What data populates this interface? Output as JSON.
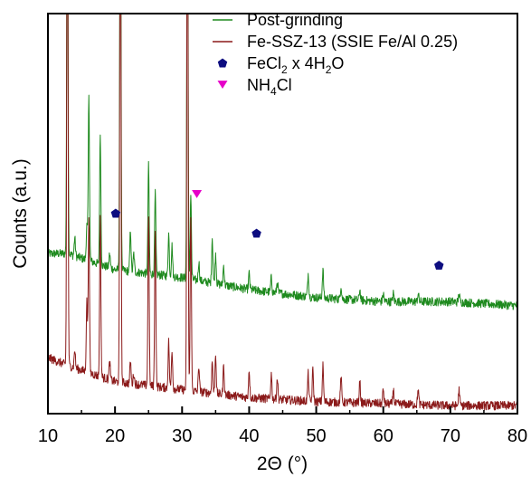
{
  "chart_data": {
    "type": "line",
    "title": "",
    "xlabel": "2Θ (°)",
    "ylabel": "Counts (a.u.)",
    "xlim": [
      10,
      80
    ],
    "x_ticks": [
      10,
      20,
      30,
      40,
      50,
      60,
      70,
      80
    ],
    "x_tick_labels": [
      "10",
      "20",
      "30",
      "40",
      "50",
      "60",
      "70",
      "80"
    ],
    "y_ticks": "none",
    "grid": false,
    "legend_position": "top-right",
    "colors": {
      "post_grinding": "#1e8a1e",
      "fe_ssz13": "#8b1a1a",
      "fecl2_marker": "#0d0d80",
      "nh4cl_marker": "#e600c8"
    },
    "series": [
      {
        "name": "Post-grinding",
        "key": "post_grinding",
        "baseline": [
          [
            10,
            0.4
          ],
          [
            13,
            0.4
          ],
          [
            20,
            0.36
          ],
          [
            30,
            0.34
          ],
          [
            40,
            0.31
          ],
          [
            50,
            0.29
          ],
          [
            60,
            0.28
          ],
          [
            70,
            0.28
          ],
          [
            80,
            0.27
          ]
        ],
        "peaks": [
          [
            12.9,
            1.55
          ],
          [
            14.0,
            0.44
          ],
          [
            15.8,
            0.47
          ],
          [
            16.1,
            0.8
          ],
          [
            17.8,
            0.7
          ],
          [
            19.2,
            0.4
          ],
          [
            20.8,
            1.55
          ],
          [
            22.3,
            0.46
          ],
          [
            22.8,
            0.4
          ],
          [
            25.0,
            0.62
          ],
          [
            26.0,
            0.55
          ],
          [
            28.0,
            0.45
          ],
          [
            28.5,
            0.42
          ],
          [
            30.8,
            1.55
          ],
          [
            31.3,
            0.55
          ],
          [
            32.5,
            0.38
          ],
          [
            34.5,
            0.44
          ],
          [
            35.0,
            0.4
          ],
          [
            36.2,
            0.37
          ],
          [
            40.0,
            0.35
          ],
          [
            43.3,
            0.34
          ],
          [
            44.2,
            0.33
          ],
          [
            48.8,
            0.35
          ],
          [
            51.0,
            0.36
          ],
          [
            53.7,
            0.32
          ],
          [
            56.5,
            0.31
          ],
          [
            60.0,
            0.3
          ],
          [
            61.5,
            0.3
          ],
          [
            65.2,
            0.3
          ],
          [
            71.3,
            0.3
          ]
        ]
      },
      {
        "name": "Fe-SSZ-13 (SSIE Fe/Al 0.25)",
        "key": "fe_ssz13",
        "baseline": [
          [
            10,
            0.14
          ],
          [
            13,
            0.12
          ],
          [
            20,
            0.08
          ],
          [
            30,
            0.06
          ],
          [
            40,
            0.04
          ],
          [
            50,
            0.03
          ],
          [
            60,
            0.025
          ],
          [
            70,
            0.02
          ],
          [
            80,
            0.02
          ]
        ],
        "peaks": [
          [
            12.9,
            1.55
          ],
          [
            14.0,
            0.16
          ],
          [
            15.8,
            0.28
          ],
          [
            16.1,
            0.5
          ],
          [
            17.8,
            0.49
          ],
          [
            19.2,
            0.13
          ],
          [
            20.8,
            1.55
          ],
          [
            22.3,
            0.13
          ],
          [
            22.8,
            0.1
          ],
          [
            25.0,
            0.5
          ],
          [
            26.0,
            0.46
          ],
          [
            28.0,
            0.18
          ],
          [
            28.5,
            0.16
          ],
          [
            30.8,
            1.55
          ],
          [
            31.3,
            0.5
          ],
          [
            32.5,
            0.12
          ],
          [
            34.5,
            0.13
          ],
          [
            35.0,
            0.15
          ],
          [
            36.2,
            0.12
          ],
          [
            40.0,
            0.11
          ],
          [
            43.3,
            0.1
          ],
          [
            44.2,
            0.09
          ],
          [
            48.8,
            0.1
          ],
          [
            49.5,
            0.11
          ],
          [
            51.0,
            0.12
          ],
          [
            53.7,
            0.09
          ],
          [
            56.5,
            0.08
          ],
          [
            60.0,
            0.06
          ],
          [
            61.5,
            0.06
          ],
          [
            65.2,
            0.06
          ],
          [
            71.3,
            0.06
          ]
        ]
      }
    ],
    "markers": [
      {
        "name": "FeCl2 x 4H2O",
        "key": "fecl2_marker",
        "shape": "pentagon",
        "points": [
          [
            20.1,
            0.5
          ],
          [
            41.1,
            0.45
          ],
          [
            68.3,
            0.37
          ]
        ]
      },
      {
        "name": "NH4Cl",
        "key": "nh4cl_marker",
        "shape": "triangle-down",
        "points": [
          [
            32.2,
            0.55
          ]
        ]
      }
    ],
    "legend": [
      {
        "kind": "line",
        "color_key": "post_grinding",
        "parts": [
          {
            "t": "Post-grinding",
            "sub": false
          }
        ]
      },
      {
        "kind": "line",
        "color_key": "fe_ssz13",
        "parts": [
          {
            "t": "Fe-SSZ-13 (SSIE Fe/Al 0.25)",
            "sub": false
          }
        ]
      },
      {
        "kind": "pentagon",
        "color_key": "fecl2_marker",
        "parts": [
          {
            "t": "FeCl",
            "sub": false
          },
          {
            "t": "2",
            "sub": true
          },
          {
            "t": " x 4H",
            "sub": false
          },
          {
            "t": "2",
            "sub": true
          },
          {
            "t": "O",
            "sub": false
          }
        ]
      },
      {
        "kind": "triangle-down",
        "color_key": "nh4cl_marker",
        "parts": [
          {
            "t": "NH",
            "sub": false
          },
          {
            "t": "4",
            "sub": true
          },
          {
            "t": "Cl",
            "sub": false
          }
        ]
      }
    ]
  }
}
